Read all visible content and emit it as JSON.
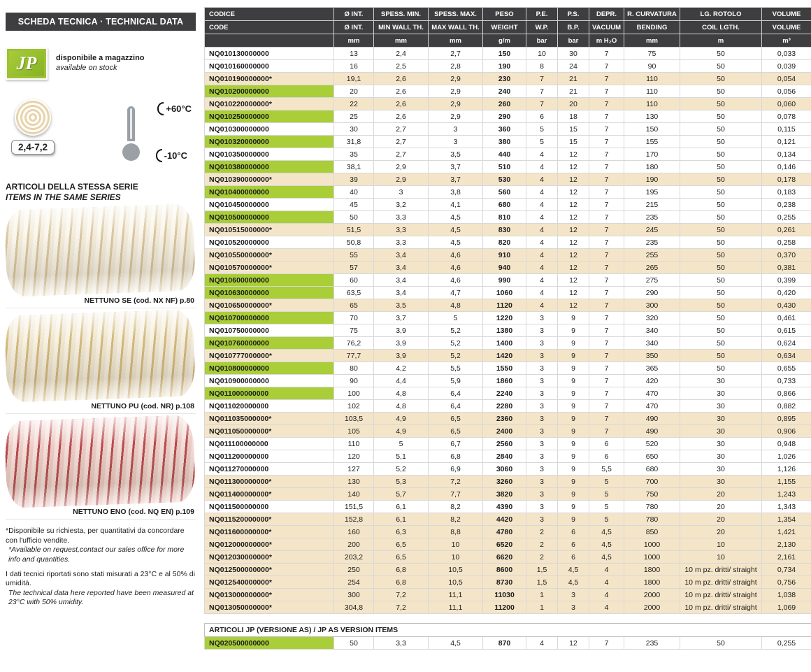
{
  "sidebar": {
    "header": "SCHEDA TECNICA · TECHNICAL DATA",
    "logo": "JP",
    "stock": {
      "it": "disponibile a magazzino",
      "en": "available on stock"
    },
    "spec_badge": "2,4-7,2",
    "temperature": {
      "max": "+60°C",
      "min": "-10°C"
    },
    "series": {
      "title_it": "ARTICOLI DELLA STESSA SERIE",
      "title_en": "ITEMS IN THE SAME SERIES",
      "items": [
        {
          "name": "nettuno-se",
          "caption": "NETTUNO SE (cod. NX NF) p.80"
        },
        {
          "name": "nettuno-pu",
          "caption": "NETTUNO PU (cod. NR) p.108"
        },
        {
          "name": "nettuno-eno",
          "caption": "NETTUNO ENO (cod. NQ EN) p.109"
        }
      ]
    },
    "notes": [
      {
        "it": "*Disponibile su richiesta, per quantitativi da concordare con l'ufficio vendite.",
        "en": "*Available on request,contact our sales office for more info and quantities."
      },
      {
        "it": "I dati tecnici riportati sono stati misurati a 23°C e al 50% di umidità.",
        "en": "The technical data here reported have been measured at 23°C with 50% umidity."
      }
    ]
  },
  "table": {
    "col_keys": [
      "diam-int",
      "spess-min",
      "spess-max",
      "peso",
      "pe",
      "ps",
      "depr",
      "curvatura",
      "rotolo",
      "volume"
    ],
    "headers_it": [
      "CODICE",
      "Ø INT.",
      "SPESS. MIN.",
      "SPESS. MAX.",
      "PESO",
      "P.E.",
      "P.S.",
      "DEPR.",
      "R. CURVATURA",
      "LG. ROTOLO",
      "VOLUME"
    ],
    "headers_en": [
      "CODE",
      "Ø INT.",
      "MIN WALL TH.",
      "MAX WALL TH.",
      "WEIGHT",
      "W.P.",
      "B.P.",
      "VACUUM",
      "BENDING",
      "COIL LGTH.",
      "VOLUME"
    ],
    "units": [
      "",
      "mm",
      "mm",
      "mm",
      "g/m",
      "bar",
      "bar",
      "m H₂O",
      "mm",
      "m",
      "m³"
    ],
    "rows": [
      {
        "code": "NQ010130000000",
        "highlight": "none",
        "values": [
          "13",
          "2,4",
          "2,7",
          "150",
          "10",
          "30",
          "7",
          "75",
          "50",
          "0,033"
        ]
      },
      {
        "code": "NQ010160000000",
        "highlight": "none",
        "values": [
          "16",
          "2,5",
          "2,8",
          "190",
          "8",
          "24",
          "7",
          "90",
          "50",
          "0,039"
        ]
      },
      {
        "code": "NQ010190000000*",
        "highlight": "tan",
        "values": [
          "19,1",
          "2,6",
          "2,9",
          "230",
          "7",
          "21",
          "7",
          "110",
          "50",
          "0,054"
        ]
      },
      {
        "code": "NQ010200000000",
        "highlight": "green",
        "values": [
          "20",
          "2,6",
          "2,9",
          "240",
          "7",
          "21",
          "7",
          "110",
          "50",
          "0,056"
        ]
      },
      {
        "code": "NQ010220000000*",
        "highlight": "tan",
        "values": [
          "22",
          "2,6",
          "2,9",
          "260",
          "7",
          "20",
          "7",
          "110",
          "50",
          "0,060"
        ]
      },
      {
        "code": "NQ010250000000",
        "highlight": "green",
        "values": [
          "25",
          "2,6",
          "2,9",
          "290",
          "6",
          "18",
          "7",
          "130",
          "50",
          "0,078"
        ]
      },
      {
        "code": "NQ010300000000",
        "highlight": "none",
        "values": [
          "30",
          "2,7",
          "3",
          "360",
          "5",
          "15",
          "7",
          "150",
          "50",
          "0,115"
        ]
      },
      {
        "code": "NQ010320000000",
        "highlight": "green",
        "values": [
          "31,8",
          "2,7",
          "3",
          "380",
          "5",
          "15",
          "7",
          "155",
          "50",
          "0,121"
        ]
      },
      {
        "code": "NQ010350000000",
        "highlight": "none",
        "values": [
          "35",
          "2,7",
          "3,5",
          "440",
          "4",
          "12",
          "7",
          "170",
          "50",
          "0,134"
        ]
      },
      {
        "code": "NQ010380000000",
        "highlight": "green",
        "values": [
          "38,1",
          "2,9",
          "3,7",
          "510",
          "4",
          "12",
          "7",
          "180",
          "50",
          "0,146"
        ]
      },
      {
        "code": "NQ010390000000*",
        "highlight": "tan",
        "values": [
          "39",
          "2,9",
          "3,7",
          "530",
          "4",
          "12",
          "7",
          "190",
          "50",
          "0,178"
        ]
      },
      {
        "code": "NQ010400000000",
        "highlight": "green",
        "values": [
          "40",
          "3",
          "3,8",
          "560",
          "4",
          "12",
          "7",
          "195",
          "50",
          "0,183"
        ]
      },
      {
        "code": "NQ010450000000",
        "highlight": "none",
        "values": [
          "45",
          "3,2",
          "4,1",
          "680",
          "4",
          "12",
          "7",
          "215",
          "50",
          "0,238"
        ]
      },
      {
        "code": "NQ010500000000",
        "highlight": "green",
        "values": [
          "50",
          "3,3",
          "4,5",
          "810",
          "4",
          "12",
          "7",
          "235",
          "50",
          "0,255"
        ]
      },
      {
        "code": "NQ010515000000*",
        "highlight": "tan",
        "values": [
          "51,5",
          "3,3",
          "4,5",
          "830",
          "4",
          "12",
          "7",
          "245",
          "50",
          "0,261"
        ]
      },
      {
        "code": "NQ010520000000",
        "highlight": "none",
        "values": [
          "50,8",
          "3,3",
          "4,5",
          "820",
          "4",
          "12",
          "7",
          "235",
          "50",
          "0,258"
        ]
      },
      {
        "code": "NQ010550000000*",
        "highlight": "tan",
        "values": [
          "55",
          "3,4",
          "4,6",
          "910",
          "4",
          "12",
          "7",
          "255",
          "50",
          "0,370"
        ]
      },
      {
        "code": "NQ010570000000*",
        "highlight": "tan",
        "values": [
          "57",
          "3,4",
          "4,6",
          "940",
          "4",
          "12",
          "7",
          "265",
          "50",
          "0,381"
        ]
      },
      {
        "code": "NQ010600000000",
        "highlight": "green",
        "values": [
          "60",
          "3,4",
          "4,6",
          "990",
          "4",
          "12",
          "7",
          "275",
          "50",
          "0,399"
        ]
      },
      {
        "code": "NQ010630000000",
        "highlight": "green",
        "values": [
          "63,5",
          "3,4",
          "4,7",
          "1060",
          "4",
          "12",
          "7",
          "290",
          "50",
          "0,420"
        ]
      },
      {
        "code": "NQ010650000000*",
        "highlight": "tan",
        "values": [
          "65",
          "3,5",
          "4,8",
          "1120",
          "4",
          "12",
          "7",
          "300",
          "50",
          "0,430"
        ]
      },
      {
        "code": "NQ010700000000",
        "highlight": "green",
        "values": [
          "70",
          "3,7",
          "5",
          "1220",
          "3",
          "9",
          "7",
          "320",
          "50",
          "0,461"
        ]
      },
      {
        "code": "NQ010750000000",
        "highlight": "none",
        "values": [
          "75",
          "3,9",
          "5,2",
          "1380",
          "3",
          "9",
          "7",
          "340",
          "50",
          "0,615"
        ]
      },
      {
        "code": "NQ010760000000",
        "highlight": "green",
        "values": [
          "76,2",
          "3,9",
          "5,2",
          "1400",
          "3",
          "9",
          "7",
          "340",
          "50",
          "0,624"
        ]
      },
      {
        "code": "NQ010777000000*",
        "highlight": "tan",
        "values": [
          "77,7",
          "3,9",
          "5,2",
          "1420",
          "3",
          "9",
          "7",
          "350",
          "50",
          "0,634"
        ]
      },
      {
        "code": "NQ010800000000",
        "highlight": "green",
        "values": [
          "80",
          "4,2",
          "5,5",
          "1550",
          "3",
          "9",
          "7",
          "365",
          "50",
          "0,655"
        ]
      },
      {
        "code": "NQ010900000000",
        "highlight": "none",
        "values": [
          "90",
          "4,4",
          "5,9",
          "1860",
          "3",
          "9",
          "7",
          "420",
          "30",
          "0,733"
        ]
      },
      {
        "code": "NQ011000000000",
        "highlight": "green",
        "values": [
          "100",
          "4,8",
          "6,4",
          "2240",
          "3",
          "9",
          "7",
          "470",
          "30",
          "0,866"
        ]
      },
      {
        "code": "NQ011020000000",
        "highlight": "none",
        "values": [
          "102",
          "4,8",
          "6,4",
          "2280",
          "3",
          "9",
          "7",
          "470",
          "30",
          "0,882"
        ]
      },
      {
        "code": "NQ011035000000*",
        "highlight": "tan",
        "values": [
          "103,5",
          "4,9",
          "6,5",
          "2360",
          "3",
          "9",
          "7",
          "490",
          "30",
          "0,895"
        ]
      },
      {
        "code": "NQ011050000000*",
        "highlight": "tan",
        "values": [
          "105",
          "4,9",
          "6,5",
          "2400",
          "3",
          "9",
          "7",
          "490",
          "30",
          "0,906"
        ]
      },
      {
        "code": "NQ011100000000",
        "highlight": "none",
        "values": [
          "110",
          "5",
          "6,7",
          "2560",
          "3",
          "9",
          "6",
          "520",
          "30",
          "0,948"
        ]
      },
      {
        "code": "NQ011200000000",
        "highlight": "none",
        "values": [
          "120",
          "5,1",
          "6,8",
          "2840",
          "3",
          "9",
          "6",
          "650",
          "30",
          "1,026"
        ]
      },
      {
        "code": "NQ011270000000",
        "highlight": "none",
        "values": [
          "127",
          "5,2",
          "6,9",
          "3060",
          "3",
          "9",
          "5,5",
          "680",
          "30",
          "1,126"
        ]
      },
      {
        "code": "NQ011300000000*",
        "highlight": "tan",
        "values": [
          "130",
          "5,3",
          "7,2",
          "3260",
          "3",
          "9",
          "5",
          "700",
          "30",
          "1,155"
        ]
      },
      {
        "code": "NQ011400000000*",
        "highlight": "tan",
        "values": [
          "140",
          "5,7",
          "7,7",
          "3820",
          "3",
          "9",
          "5",
          "750",
          "20",
          "1,243"
        ]
      },
      {
        "code": "NQ011500000000",
        "highlight": "none",
        "values": [
          "151,5",
          "6,1",
          "8,2",
          "4390",
          "3",
          "9",
          "5",
          "780",
          "20",
          "1,343"
        ]
      },
      {
        "code": "NQ011520000000*",
        "highlight": "tan",
        "values": [
          "152,8",
          "6,1",
          "8,2",
          "4420",
          "3",
          "9",
          "5",
          "780",
          "20",
          "1,354"
        ]
      },
      {
        "code": "NQ011600000000*",
        "highlight": "tan",
        "values": [
          "160",
          "6,3",
          "8,8",
          "4780",
          "2",
          "6",
          "4,5",
          "850",
          "20",
          "1,421"
        ]
      },
      {
        "code": "NQ012000000000*",
        "highlight": "tan",
        "values": [
          "200",
          "6,5",
          "10",
          "6520",
          "2",
          "6",
          "4,5",
          "1000",
          "10",
          "2,130"
        ]
      },
      {
        "code": "NQ012030000000*",
        "highlight": "tan",
        "values": [
          "203,2",
          "6,5",
          "10",
          "6620",
          "2",
          "6",
          "4,5",
          "1000",
          "10",
          "2,161"
        ]
      },
      {
        "code": "NQ012500000000*",
        "highlight": "tan",
        "values": [
          "250",
          "6,8",
          "10,5",
          "8600",
          "1,5",
          "4,5",
          "4",
          "1800",
          "10 m pz. dritti/ straight",
          "0,734"
        ]
      },
      {
        "code": "NQ012540000000*",
        "highlight": "tan",
        "values": [
          "254",
          "6,8",
          "10,5",
          "8730",
          "1,5",
          "4,5",
          "4",
          "1800",
          "10 m pz. dritti/ straight",
          "0,756"
        ]
      },
      {
        "code": "NQ013000000000*",
        "highlight": "tan",
        "values": [
          "300",
          "7,2",
          "11,1",
          "11030",
          "1",
          "3",
          "4",
          "2000",
          "10 m pz. dritti/ straight",
          "1,038"
        ]
      },
      {
        "code": "NQ013050000000*",
        "highlight": "tan",
        "values": [
          "304,8",
          "7,2",
          "11,1",
          "11200",
          "1",
          "3",
          "4",
          "2000",
          "10 m pz. dritti/ straight",
          "1,069"
        ]
      }
    ]
  },
  "as_section": {
    "title": "ARTICOLI JP (VERSIONE AS) / JP AS VERSION ITEMS",
    "rows": [
      {
        "code": "NQ020500000000",
        "highlight": "green",
        "values": [
          "50",
          "3,3",
          "4,5",
          "870",
          "4",
          "12",
          "7",
          "235",
          "50",
          "0,255"
        ]
      }
    ]
  },
  "colors": {
    "highlight_green": "#a9ce38",
    "row_tan": "#f4e5c9",
    "header_bg": "#3e3e40"
  }
}
